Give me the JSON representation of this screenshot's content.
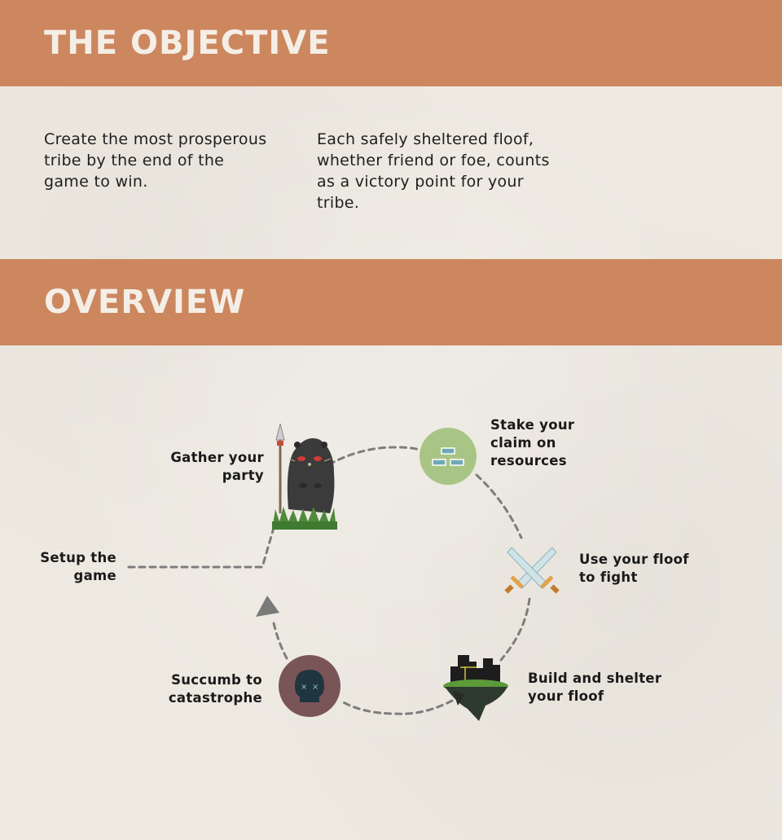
{
  "objective": {
    "title": "THE OBJECTIVE",
    "left_text": "Create the most prosperous tribe by the end of the game to win.",
    "right_text": "Each safely sheltered floof, whether friend or foe, counts as a victory point for your tribe."
  },
  "overview": {
    "title": "OVERVIEW",
    "steps": [
      {
        "label": "Setup the game",
        "icon": "none"
      },
      {
        "label": "Gather your party",
        "icon": "mole-warrior-icon"
      },
      {
        "label": "Stake your claim on resources",
        "icon": "resource-bricks-icon"
      },
      {
        "label": "Use your floof to fight",
        "icon": "crossed-swords-icon"
      },
      {
        "label": "Build and shelter your floof",
        "icon": "floating-island-city-icon"
      },
      {
        "label": "Succumb to catastrophe",
        "icon": "skull-icon"
      }
    ]
  },
  "colors": {
    "band": "#cc875f",
    "band_text": "#f4eee6",
    "resource_circle": "#a9c585",
    "skull_circle": "#7a5558",
    "dashed_line": "#7d7d7d"
  }
}
